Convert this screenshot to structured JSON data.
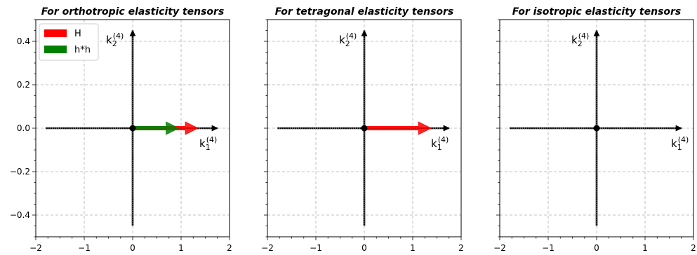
{
  "chart_data": [
    {
      "type": "vector",
      "title": "For orthotropic elasticity tensors",
      "xlim": [
        -2,
        2
      ],
      "ylim": [
        -0.5,
        0.5
      ],
      "xticks": [
        "−2",
        "−1",
        "0",
        "1",
        "2"
      ],
      "yticks": [
        "−0.4",
        "−0.2",
        "0.0",
        "0.2",
        "0.4"
      ],
      "grid": true,
      "axis_labels": {
        "horizontal": "k",
        "horizontal_sub": "1",
        "vertical": "k",
        "vertical_sub": "2",
        "sup": "(4)"
      },
      "series": [
        {
          "name": "H",
          "x0": 0,
          "y0": 0,
          "dx": 1.35,
          "dy": 0,
          "color": "#ff0000"
        },
        {
          "name": "h*h",
          "x0": 0,
          "y0": 0,
          "dx": 0.95,
          "dy": 0,
          "color": "#008000"
        }
      ],
      "legend": {
        "placement": "upper-left",
        "entries": [
          "H",
          "h*h"
        ]
      }
    },
    {
      "type": "vector",
      "title": "For tetragonal elasticity tensors",
      "xlim": [
        -2,
        2
      ],
      "ylim": [
        -0.5,
        0.5
      ],
      "xticks": [
        "−2",
        "−1",
        "0",
        "1",
        "2"
      ],
      "grid": true,
      "axis_labels": {
        "horizontal": "k",
        "horizontal_sub": "1",
        "vertical": "k",
        "vertical_sub": "2",
        "sup": "(4)"
      },
      "series": [
        {
          "name": "H",
          "x0": 0,
          "y0": 0,
          "dx": 1.38,
          "dy": 0,
          "color": "#ff0000"
        }
      ]
    },
    {
      "type": "vector",
      "title": "For isotropic elasticity tensors",
      "xlim": [
        -2,
        2
      ],
      "ylim": [
        -0.5,
        0.5
      ],
      "xticks": [
        "−2",
        "−1",
        "0",
        "1",
        "2"
      ],
      "grid": true,
      "axis_labels": {
        "horizontal": "k",
        "horizontal_sub": "1",
        "vertical": "k",
        "vertical_sub": "2",
        "sup": "(4)"
      },
      "series": []
    }
  ]
}
